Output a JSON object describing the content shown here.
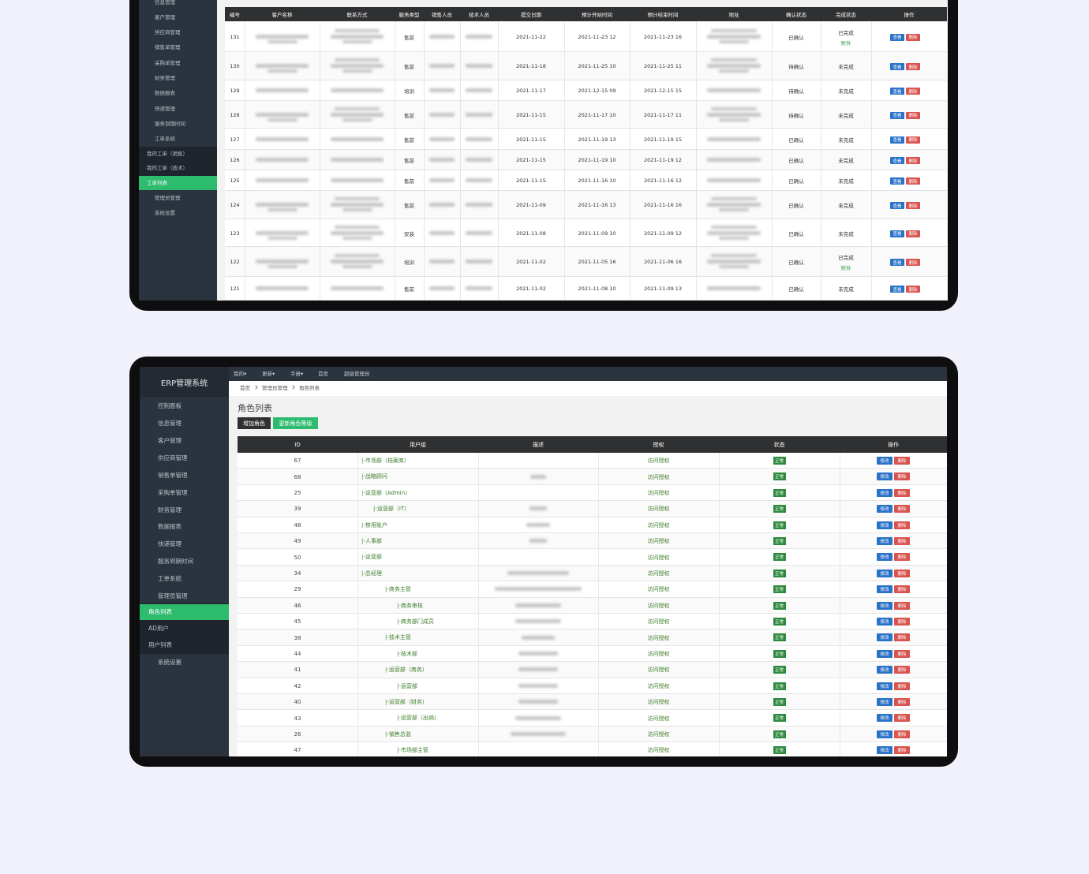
{
  "top_screen": {
    "sidebar": [
      "信息管理",
      "客户管理",
      "供应商管理",
      "销售单管理",
      "采购单管理",
      "财务管理",
      "数据报表",
      "快递管理",
      "服务到期时间",
      "工单系统",
      "我的工单（销售）",
      "我的工单（技术）",
      "工单列表",
      "管理员管理",
      "系统设置"
    ],
    "table": {
      "headers": [
        "编号",
        "客户名称",
        "联系方式",
        "服务类型",
        "销售人员",
        "技术人员",
        "提交日期",
        "预计开始时间",
        "预计结束时间",
        "地址",
        "确认状态",
        "完成状态",
        "操作"
      ],
      "rows": [
        {
          "id": 131,
          "type": "售前",
          "date": "2021-11-22",
          "start": "2021-11-23 12",
          "end": "2021-11-23 16",
          "confirm": "已确认",
          "complete": "已完成",
          "attachment": "附件",
          "view": "查看",
          "delete": "删除"
        },
        {
          "id": 130,
          "type": "售前",
          "date": "2021-11-18",
          "start": "2021-11-25 10",
          "end": "2021-11-25 11",
          "confirm": "待确认",
          "complete": "未完成",
          "view": "查看",
          "delete": "删除"
        },
        {
          "id": 129,
          "type": "培训",
          "date": "2021-11-17",
          "start": "2021-12-15 09",
          "end": "2021-12-15 15",
          "confirm": "待确认",
          "complete": "未完成",
          "view": "查看",
          "delete": "删除"
        },
        {
          "id": 128,
          "type": "售前",
          "date": "2021-11-15",
          "start": "2021-11-17 10",
          "end": "2021-11-17 11",
          "confirm": "待确认",
          "complete": "未完成",
          "view": "查看",
          "delete": "删除"
        },
        {
          "id": 127,
          "type": "售前",
          "date": "2021-11-15",
          "start": "2021-11-19 13",
          "end": "2021-11-19 15",
          "confirm": "已确认",
          "complete": "未完成",
          "view": "查看",
          "delete": "删除"
        },
        {
          "id": 126,
          "type": "售前",
          "date": "2021-11-15",
          "start": "2021-11-19 10",
          "end": "2021-11-19 12",
          "confirm": "已确认",
          "complete": "未完成",
          "view": "查看",
          "delete": "删除"
        },
        {
          "id": 125,
          "type": "售前",
          "date": "2021-11-15",
          "start": "2021-11-16 10",
          "end": "2021-11-16 12",
          "confirm": "已确认",
          "complete": "未完成",
          "view": "查看",
          "delete": "删除"
        },
        {
          "id": 124,
          "type": "售前",
          "date": "2021-11-09",
          "start": "2021-11-16 13",
          "end": "2021-11-16 16",
          "confirm": "已确认",
          "complete": "未完成",
          "view": "查看",
          "delete": "删除"
        },
        {
          "id": 123,
          "type": "安装",
          "date": "2021-11-08",
          "start": "2021-11-09 10",
          "end": "2021-11-09 12",
          "confirm": "已确认",
          "complete": "未完成",
          "view": "查看",
          "delete": "删除"
        },
        {
          "id": 122,
          "type": "培训",
          "date": "2021-11-02",
          "start": "2021-11-05 16",
          "end": "2021-11-06 16",
          "confirm": "已确认",
          "complete": "已完成",
          "attachment": "附件",
          "view": "查看",
          "delete": "删除"
        },
        {
          "id": 121,
          "type": "售前",
          "date": "2021-11-02",
          "start": "2021-11-08 10",
          "end": "2021-11-09 13",
          "confirm": "已确认",
          "complete": "未完成",
          "view": "查看",
          "delete": "删除"
        }
      ]
    }
  },
  "bottom_screen": {
    "brand": "ERP管理系统",
    "nav": [
      "我的▾",
      "更新▾",
      "手册▾",
      "首页",
      "超级管理员"
    ],
    "sidebar": [
      "控制面板",
      "信息管理",
      "客户管理",
      "供应商管理",
      "销售单管理",
      "采购单管理",
      "财务管理",
      "数据报表",
      "快递管理",
      "服务到期时间",
      "工单系统",
      "管理员管理",
      "角色列表",
      "AD用户",
      "用户列表",
      "系统设置"
    ],
    "breadcrumb": [
      "首页",
      "管理员管理",
      "角色列表"
    ],
    "title": "角色列表",
    "buttons": [
      "增加角色",
      "更新角色等级"
    ],
    "table": {
      "headers": [
        "ID",
        "用户组",
        "描述",
        "授权",
        "状态",
        "操作"
      ],
      "rows": [
        {
          "id": 67,
          "group": "|-市场部（档案库）",
          "auth": "访问授权",
          "status": "正常",
          "edit": "修改",
          "delete": "删除"
        },
        {
          "id": 68,
          "group": "|-战略顾问",
          "auth": "访问授权",
          "status": "正常",
          "edit": "修改",
          "delete": "删除"
        },
        {
          "id": 25,
          "group": "|-运营部（Admin）",
          "auth": "访问授权",
          "status": "正常",
          "edit": "修改",
          "delete": "删除"
        },
        {
          "id": 39,
          "group": "|-运营部（IT）",
          "auth": "访问授权",
          "status": "正常",
          "edit": "修改",
          "delete": "删除"
        },
        {
          "id": 48,
          "group": "|-禁用账户",
          "auth": "访问授权",
          "status": "正常",
          "edit": "修改",
          "delete": "删除"
        },
        {
          "id": 49,
          "group": "|-人事部",
          "auth": "访问授权",
          "status": "正常",
          "edit": "修改",
          "delete": "删除"
        },
        {
          "id": 50,
          "group": "|-运营部",
          "auth": "访问授权",
          "status": "正常",
          "edit": "修改",
          "delete": "删除"
        },
        {
          "id": 34,
          "group": "|-总经理",
          "auth": "访问授权",
          "status": "正常",
          "edit": "修改",
          "delete": "删除"
        },
        {
          "id": 29,
          "group": "|-商务主管",
          "auth": "访问授权",
          "status": "正常",
          "edit": "修改",
          "delete": "删除"
        },
        {
          "id": 46,
          "group": "|-商务审核",
          "auth": "访问授权",
          "status": "正常",
          "edit": "修改",
          "delete": "删除"
        },
        {
          "id": 45,
          "group": "|-商务部门成员",
          "auth": "访问授权",
          "status": "正常",
          "edit": "修改",
          "delete": "删除"
        },
        {
          "id": 38,
          "group": "|-技术主管",
          "auth": "访问授权",
          "status": "正常",
          "edit": "修改",
          "delete": "删除"
        },
        {
          "id": 44,
          "group": "|-技术部",
          "auth": "访问授权",
          "status": "正常",
          "edit": "修改",
          "delete": "删除"
        },
        {
          "id": 41,
          "group": "|-运营部（商务）",
          "auth": "访问授权",
          "status": "正常",
          "edit": "修改",
          "delete": "删除"
        },
        {
          "id": 42,
          "group": "|-运营部",
          "auth": "访问授权",
          "status": "正常",
          "edit": "修改",
          "delete": "删除"
        },
        {
          "id": 40,
          "group": "|-运营部（财务）",
          "auth": "访问授权",
          "status": "正常",
          "edit": "修改",
          "delete": "删除"
        },
        {
          "id": 43,
          "group": "|-运营部（出纳）",
          "auth": "访问授权",
          "status": "正常",
          "edit": "修改",
          "delete": "删除"
        },
        {
          "id": 26,
          "group": "|-销售总监",
          "auth": "访问授权",
          "status": "正常",
          "edit": "修改",
          "delete": "删除"
        },
        {
          "id": 47,
          "group": "|-市场部主管",
          "auth": "访问授权",
          "status": "正常",
          "edit": "修改",
          "delete": "删除"
        }
      ]
    }
  }
}
